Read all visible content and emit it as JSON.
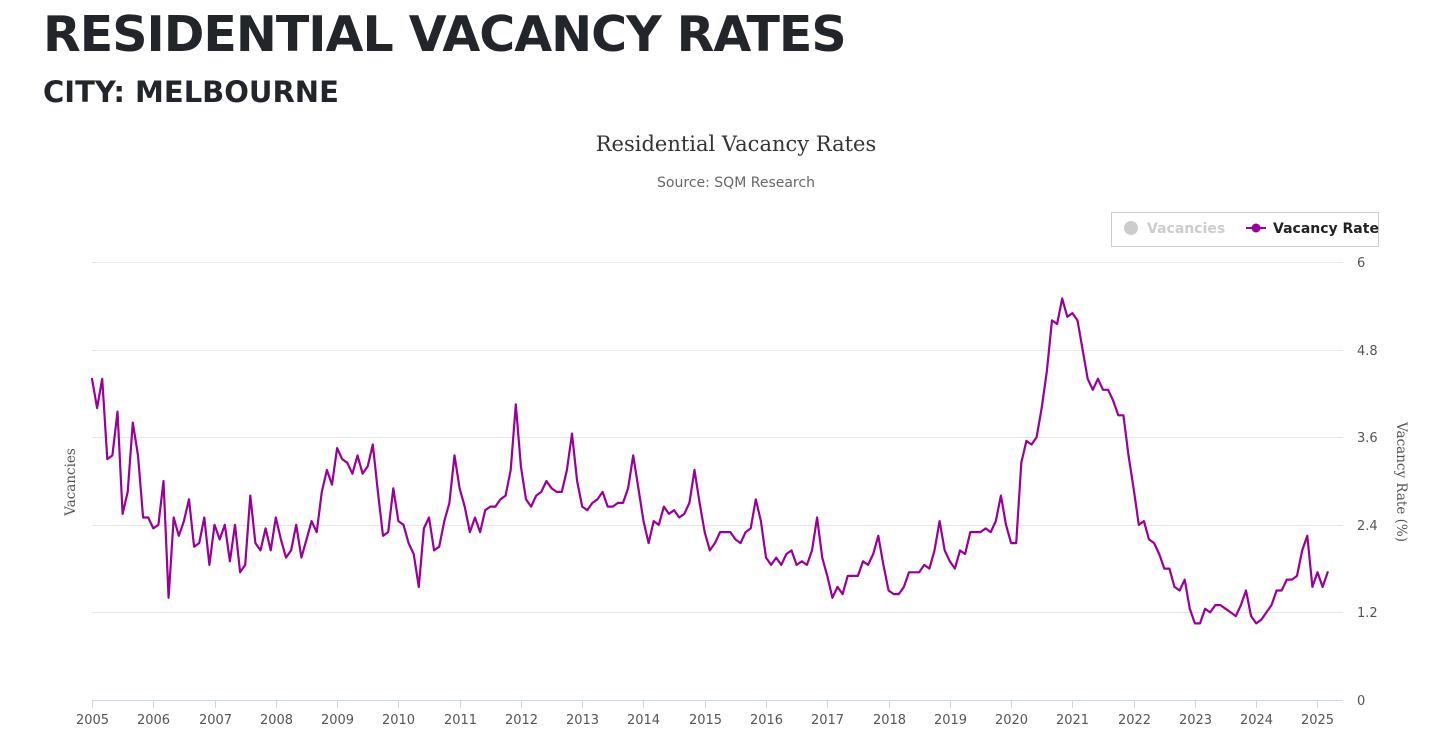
{
  "header": {
    "title": "RESIDENTIAL VACANCY RATES",
    "subtitle": "CITY: MELBOURNE"
  },
  "colors": {
    "series": "#990099",
    "legend_inactive": "#cccccc",
    "gridline": "#e6e6e6",
    "text": "#222529"
  },
  "chart_data": {
    "type": "line",
    "title": "Residential Vacancy Rates",
    "subtitle": "Source: SQM Research",
    "xlabel": "",
    "ylabel_left": "Vacancies",
    "ylabel_right": "Vacancy Rate (%)",
    "x_ticks": [
      "2005",
      "2006",
      "2007",
      "2008",
      "2009",
      "2010",
      "2011",
      "2012",
      "2013",
      "2014",
      "2015",
      "2016",
      "2017",
      "2018",
      "2019",
      "2020",
      "2021",
      "2022",
      "2023",
      "2024",
      "2025"
    ],
    "y_ticks_right": [
      "0",
      "1.2",
      "2.4",
      "3.6",
      "4.8",
      "6"
    ],
    "xlim": [
      "2005-01",
      "2025-06"
    ],
    "ylim": [
      0,
      6
    ],
    "grid": true,
    "legend_position": "top-right",
    "legend": [
      {
        "label": "Vacancies",
        "active": false,
        "icon": "circle-icon"
      },
      {
        "label": "Vacancy Rate",
        "active": true,
        "icon": "line-marker-icon"
      }
    ],
    "series": [
      {
        "name": "Vacancy Rate",
        "start": "2005-01",
        "frequency": "monthly",
        "values": [
          4.4,
          4.0,
          4.4,
          3.3,
          3.35,
          3.95,
          2.55,
          2.85,
          3.8,
          3.35,
          2.5,
          2.5,
          2.35,
          2.4,
          3.0,
          1.4,
          2.5,
          2.25,
          2.45,
          2.75,
          2.1,
          2.15,
          2.5,
          1.85,
          2.4,
          2.2,
          2.4,
          1.9,
          2.4,
          1.75,
          1.85,
          2.8,
          2.15,
          2.05,
          2.35,
          2.05,
          2.5,
          2.2,
          1.95,
          2.05,
          2.4,
          1.95,
          2.2,
          2.45,
          2.3,
          2.85,
          3.15,
          2.95,
          3.45,
          3.3,
          3.25,
          3.1,
          3.35,
          3.1,
          3.2,
          3.5,
          2.85,
          2.25,
          2.3,
          2.9,
          2.45,
          2.4,
          2.15,
          2.0,
          1.55,
          2.35,
          2.5,
          2.05,
          2.1,
          2.45,
          2.7,
          3.35,
          2.9,
          2.65,
          2.3,
          2.5,
          2.3,
          2.6,
          2.65,
          2.65,
          2.75,
          2.8,
          3.15,
          4.05,
          3.2,
          2.75,
          2.65,
          2.8,
          2.85,
          3.0,
          2.9,
          2.85,
          2.85,
          3.15,
          3.65,
          3.0,
          2.65,
          2.6,
          2.7,
          2.75,
          2.85,
          2.65,
          2.65,
          2.7,
          2.7,
          2.9,
          3.35,
          2.9,
          2.45,
          2.15,
          2.45,
          2.4,
          2.65,
          2.55,
          2.6,
          2.5,
          2.55,
          2.7,
          3.15,
          2.7,
          2.3,
          2.05,
          2.15,
          2.3,
          2.3,
          2.3,
          2.2,
          2.15,
          2.3,
          2.35,
          2.75,
          2.45,
          1.95,
          1.85,
          1.95,
          1.85,
          2.0,
          2.05,
          1.85,
          1.9,
          1.85,
          2.05,
          2.5,
          1.95,
          1.7,
          1.4,
          1.55,
          1.45,
          1.7,
          1.7,
          1.7,
          1.9,
          1.85,
          2.0,
          2.25,
          1.85,
          1.5,
          1.45,
          1.45,
          1.55,
          1.75,
          1.75,
          1.75,
          1.85,
          1.8,
          2.05,
          2.45,
          2.05,
          1.9,
          1.8,
          2.05,
          2.0,
          2.3,
          2.3,
          2.3,
          2.35,
          2.3,
          2.45,
          2.8,
          2.4,
          2.15,
          2.15,
          3.25,
          3.55,
          3.5,
          3.6,
          4.0,
          4.5,
          5.2,
          5.15,
          5.5,
          5.25,
          5.3,
          5.2,
          4.8,
          4.4,
          4.25,
          4.4,
          4.25,
          4.25,
          4.1,
          3.9,
          3.9,
          3.35,
          2.9,
          2.4,
          2.45,
          2.2,
          2.15,
          2.0,
          1.8,
          1.8,
          1.55,
          1.5,
          1.65,
          1.25,
          1.05,
          1.05,
          1.25,
          1.2,
          1.3,
          1.3,
          1.25,
          1.2,
          1.15,
          1.3,
          1.5,
          1.15,
          1.05,
          1.1,
          1.2,
          1.3,
          1.5,
          1.5,
          1.65,
          1.65,
          1.7,
          2.05,
          2.25,
          1.55,
          1.75,
          1.55,
          1.75
        ]
      }
    ]
  }
}
